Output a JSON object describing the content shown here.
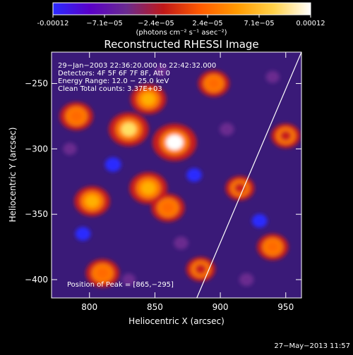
{
  "colorbar": {
    "ticks": [
      "-0.00012",
      "−7.1e−05",
      "−2.4e−05",
      "2.4e−05",
      "7.1e−05",
      "0.00012"
    ],
    "unit_label": "(photons cm⁻² s⁻¹ asec⁻²)",
    "colors": [
      "#2a2aff",
      "#5a00c8",
      "#6a2b8f",
      "#c01818",
      "#ff5a00",
      "#ff9a00",
      "#ffd24a",
      "#ffffff"
    ]
  },
  "chart_data": {
    "type": "heatmap",
    "title": "Reconstructed RHESSI Image",
    "xlabel": "Heliocentric X (arcsec)",
    "ylabel": "Heliocentric Y (arcsec)",
    "xlim": [
      771,
      962
    ],
    "ylim": [
      -414,
      -226
    ],
    "x_ticks": [
      800,
      850,
      900,
      950
    ],
    "y_ticks": [
      -250,
      -300,
      -350,
      -400
    ],
    "x_tick_labels": [
      "800",
      "850",
      "900",
      "950"
    ],
    "y_tick_labels": [
      "−250",
      "−300",
      "−350",
      "−400"
    ],
    "annotations": [
      "29−Jan−2003 22:36:20.000 to 22:42:32.000",
      "Detectors: 4F 5F 6F 7F 8F, Att 0",
      "Energy Range: 12.0 − 25.0 keV",
      "Clean     Total counts: 3.37E+03"
    ],
    "peak_label": "Position of Peak = [865,−295]",
    "peak": [
      865,
      -295
    ],
    "limb_line": [
      [
        882,
        -414
      ],
      [
        962,
        -226
      ]
    ],
    "value_range": [
      -0.00012,
      0.00012
    ],
    "peaks": [
      {
        "x": 865,
        "y": -295,
        "value": 0.00012
      },
      {
        "x": 830,
        "y": -285,
        "value": 0.0001
      },
      {
        "x": 845,
        "y": -330,
        "value": 9e-05
      },
      {
        "x": 802,
        "y": -340,
        "value": 8e-05
      },
      {
        "x": 790,
        "y": -275,
        "value": 7e-05
      },
      {
        "x": 845,
        "y": -262,
        "value": 8e-05
      },
      {
        "x": 860,
        "y": -345,
        "value": 7e-05
      },
      {
        "x": 810,
        "y": -395,
        "value": 7e-05
      },
      {
        "x": 940,
        "y": -375,
        "value": 6e-05
      },
      {
        "x": 895,
        "y": -250,
        "value": 6e-05
      },
      {
        "x": 915,
        "y": -330,
        "value": 5e-05
      },
      {
        "x": 950,
        "y": -290,
        "value": 5e-05
      },
      {
        "x": 885,
        "y": -392,
        "value": 5e-05
      },
      {
        "x": 818,
        "y": -312,
        "value": -0.00011
      },
      {
        "x": 880,
        "y": -320,
        "value": -0.0001
      },
      {
        "x": 795,
        "y": -365,
        "value": -0.0001
      },
      {
        "x": 905,
        "y": -285,
        "value": -9e-05
      },
      {
        "x": 930,
        "y": -355,
        "value": -0.0001
      },
      {
        "x": 870,
        "y": -372,
        "value": -9e-05
      },
      {
        "x": 830,
        "y": -400,
        "value": -8e-05
      },
      {
        "x": 785,
        "y": -300,
        "value": -8e-05
      },
      {
        "x": 920,
        "y": -400,
        "value": -9e-05
      },
      {
        "x": 940,
        "y": -245,
        "value": -8e-05
      },
      {
        "x": 855,
        "y": -240,
        "value": -7e-05
      }
    ]
  },
  "footer": {
    "date": "27−May−2013 11:57"
  }
}
